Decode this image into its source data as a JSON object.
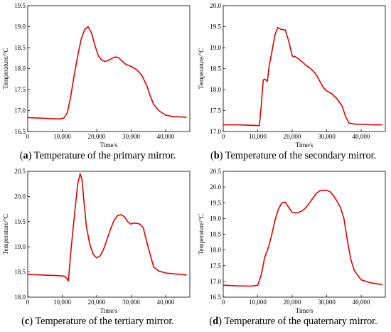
{
  "series_color": "#e00000",
  "chart_data": [
    {
      "type": "line",
      "panel_letter": "a",
      "caption_text": " Temperature of the primary mirror.",
      "xlabel": "Time/s",
      "ylabel": "Temperature/°C",
      "xlim": [
        0,
        47000
      ],
      "ylim": [
        16.5,
        19.5
      ],
      "xticks": [
        0,
        10000,
        20000,
        30000,
        40000
      ],
      "xtick_labels": [
        "0",
        "10,000",
        "20,000",
        "30,000",
        "40,000"
      ],
      "yticks": [
        16.5,
        17.0,
        17.5,
        18.0,
        18.5,
        19.0,
        19.5
      ],
      "ytick_labels": [
        "16.5",
        "17.0",
        "17.5",
        "18.0",
        "18.5",
        "19.0",
        "19.5"
      ],
      "x": [
        0,
        3000,
        6000,
        9000,
        10500,
        11500,
        12500,
        13500,
        14500,
        15500,
        16500,
        17500,
        18500,
        19500,
        20500,
        21500,
        22500,
        23500,
        24500,
        25500,
        26500,
        27500,
        28500,
        30000,
        31500,
        33000,
        34500,
        35500,
        36500,
        38000,
        40000,
        42000,
        44000,
        46000
      ],
      "y": [
        16.83,
        16.82,
        16.81,
        16.8,
        16.82,
        16.95,
        17.35,
        17.85,
        18.3,
        18.7,
        18.93,
        19.0,
        18.85,
        18.55,
        18.3,
        18.2,
        18.17,
        18.2,
        18.25,
        18.28,
        18.25,
        18.17,
        18.1,
        18.05,
        17.98,
        17.85,
        17.6,
        17.35,
        17.15,
        17.0,
        16.89,
        16.86,
        16.85,
        16.84
      ]
    },
    {
      "type": "line",
      "panel_letter": "b",
      "caption_text": " Temperature of the secondary mirror.",
      "xlabel": "Time/s",
      "ylabel": "Temperature/°C",
      "xlim": [
        0,
        47000
      ],
      "ylim": [
        17.0,
        20.0
      ],
      "xticks": [
        0,
        10000,
        20000,
        30000,
        40000
      ],
      "xtick_labels": [
        "0",
        "10,000",
        "20,000",
        "30,000",
        "40,000"
      ],
      "yticks": [
        17.0,
        17.5,
        18.0,
        18.5,
        19.0,
        19.5,
        20.0
      ],
      "ytick_labels": [
        "17.0",
        "17.5",
        "18.0",
        "18.5",
        "19.0",
        "19.5",
        "20.0"
      ],
      "x": [
        0,
        4000,
        8000,
        10500,
        11000,
        11600,
        12000,
        12800,
        13300,
        14000,
        15000,
        15800,
        16500,
        17000,
        18000,
        19000,
        20000,
        21000,
        22000,
        23000,
        24000,
        25000,
        26000,
        27000,
        28000,
        29000,
        30000,
        31500,
        33000,
        34500,
        35500,
        36500,
        38000,
        40000,
        43000,
        46000
      ],
      "y": [
        17.16,
        17.16,
        17.15,
        17.14,
        17.6,
        18.23,
        18.25,
        18.2,
        18.55,
        18.85,
        19.3,
        19.48,
        19.45,
        19.43,
        19.42,
        19.15,
        18.8,
        18.78,
        18.72,
        18.65,
        18.58,
        18.52,
        18.45,
        18.35,
        18.2,
        18.05,
        17.97,
        17.9,
        17.78,
        17.6,
        17.35,
        17.2,
        17.18,
        17.17,
        17.16,
        17.16
      ]
    },
    {
      "type": "line",
      "panel_letter": "c",
      "caption_text": " Temperature of the tertiary mirror.",
      "xlabel": "Time/s",
      "ylabel": "Temperature/°C",
      "xlim": [
        0,
        47000
      ],
      "ylim": [
        18.0,
        20.5
      ],
      "xticks": [
        0,
        10000,
        20000,
        30000,
        40000
      ],
      "xtick_labels": [
        "0",
        "10,000",
        "20,000",
        "30,000",
        "40,000"
      ],
      "yticks": [
        18.0,
        18.5,
        19.0,
        19.5,
        20.0,
        20.5
      ],
      "ytick_labels": [
        "18.0",
        "18.5",
        "19.0",
        "19.5",
        "20.0",
        "20.5"
      ],
      "x": [
        0,
        4000,
        8000,
        10500,
        11300,
        11800,
        12500,
        13500,
        14500,
        15200,
        15700,
        16300,
        17000,
        18000,
        19000,
        20000,
        21000,
        22000,
        23000,
        24000,
        25000,
        26000,
        27000,
        28000,
        29000,
        29800,
        30500,
        31500,
        32500,
        33500,
        34500,
        35500,
        36500,
        38000,
        40000,
        43000,
        46000
      ],
      "y": [
        18.45,
        18.44,
        18.43,
        18.42,
        18.38,
        18.32,
        18.9,
        19.6,
        20.25,
        20.45,
        20.35,
        19.9,
        19.4,
        19.05,
        18.85,
        18.78,
        18.82,
        18.95,
        19.15,
        19.35,
        19.52,
        19.62,
        19.64,
        19.6,
        19.5,
        19.45,
        19.47,
        19.47,
        19.45,
        19.38,
        19.1,
        18.85,
        18.6,
        18.52,
        18.48,
        18.46,
        18.44
      ]
    },
    {
      "type": "line",
      "panel_letter": "d",
      "caption_text": " Temperature of the quaternary mirror.",
      "xlabel": "Time/s",
      "ylabel": "Temperature/°C",
      "xlim": [
        0,
        47000
      ],
      "ylim": [
        16.5,
        20.5
      ],
      "xticks": [
        0,
        10000,
        20000,
        30000,
        40000
      ],
      "xtick_labels": [
        "0",
        "10,000",
        "20,000",
        "30,000",
        "40,000"
      ],
      "yticks": [
        16.5,
        17.0,
        17.5,
        18.0,
        18.5,
        19.0,
        19.5,
        20.0,
        20.5
      ],
      "ytick_labels": [
        "16.5",
        "17.0",
        "17.5",
        "18.0",
        "18.5",
        "19.0",
        "19.5",
        "20.0",
        "20.5"
      ],
      "x": [
        0,
        4000,
        8000,
        10000,
        11000,
        12000,
        13000,
        14000,
        15000,
        16000,
        17000,
        18000,
        19000,
        20000,
        21000,
        22000,
        23000,
        24000,
        25000,
        26000,
        27000,
        28000,
        29000,
        30000,
        31000,
        32000,
        33000,
        34000,
        35000,
        36000,
        37000,
        38000,
        40000,
        43000,
        46000
      ],
      "y": [
        16.88,
        16.86,
        16.85,
        16.88,
        17.2,
        17.75,
        18.05,
        18.45,
        18.95,
        19.3,
        19.5,
        19.52,
        19.35,
        19.2,
        19.18,
        19.2,
        19.25,
        19.35,
        19.5,
        19.65,
        19.8,
        19.88,
        19.9,
        19.9,
        19.85,
        19.72,
        19.55,
        19.35,
        19.0,
        18.3,
        17.7,
        17.35,
        17.05,
        16.95,
        16.9
      ]
    }
  ]
}
